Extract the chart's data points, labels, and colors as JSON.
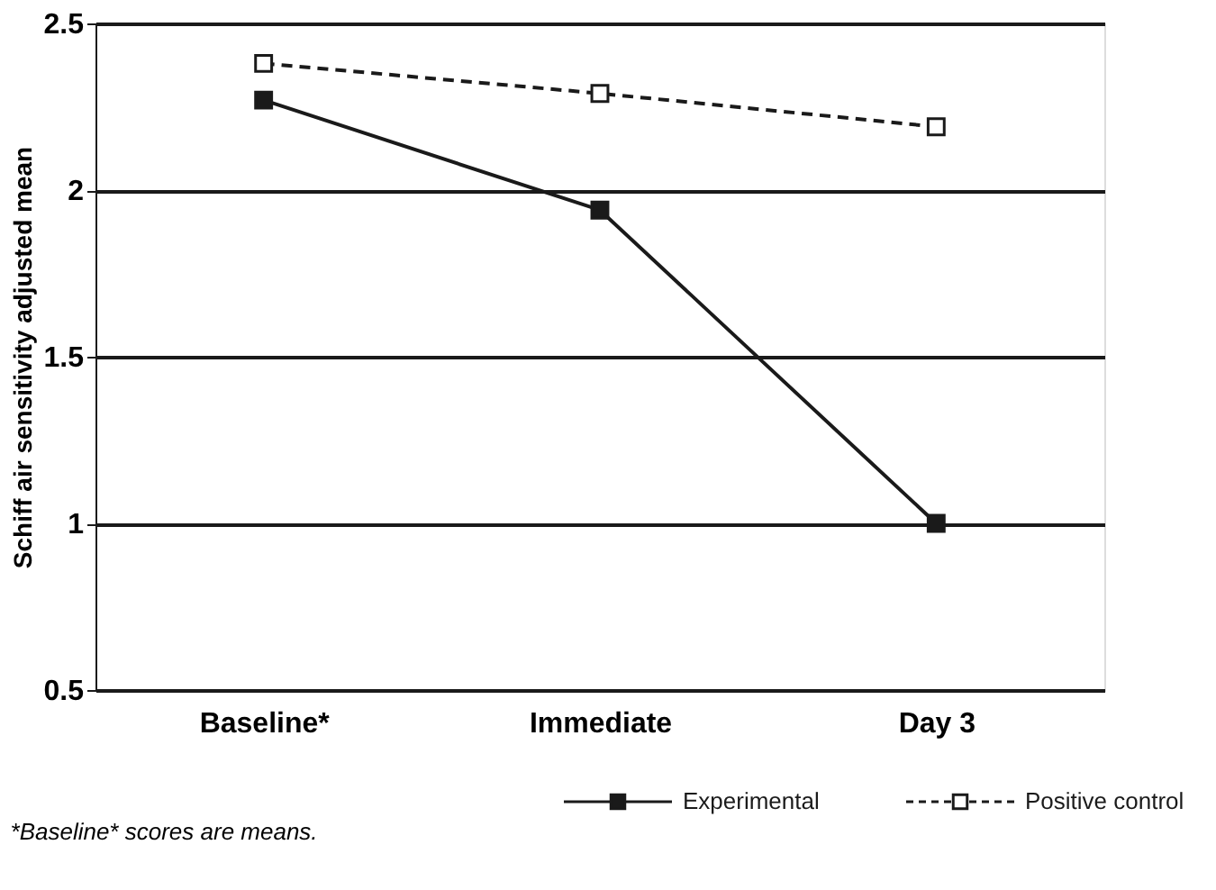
{
  "chart_data": {
    "type": "line",
    "ylabel": "Schiff air sensitivity adjusted mean",
    "categories": [
      "Baseline*",
      "Immediate",
      "Day 3"
    ],
    "series": [
      {
        "name": "Experimental",
        "color": "#1a1a1a",
        "values": [
          2.27,
          1.94,
          1.0
        ],
        "line_style": "solid"
      },
      {
        "name": "Positive control",
        "color": "#1a1a1a",
        "values": [
          2.38,
          2.29,
          2.19
        ],
        "line_style": "dashed"
      }
    ],
    "ylim": [
      0.5,
      2.5
    ],
    "yticks": [
      0.5,
      1,
      1.5,
      2,
      2.5
    ],
    "grid": "y",
    "marker": "square",
    "legend": "bottom",
    "annotations": [
      "*Baseline* scores are means."
    ]
  }
}
